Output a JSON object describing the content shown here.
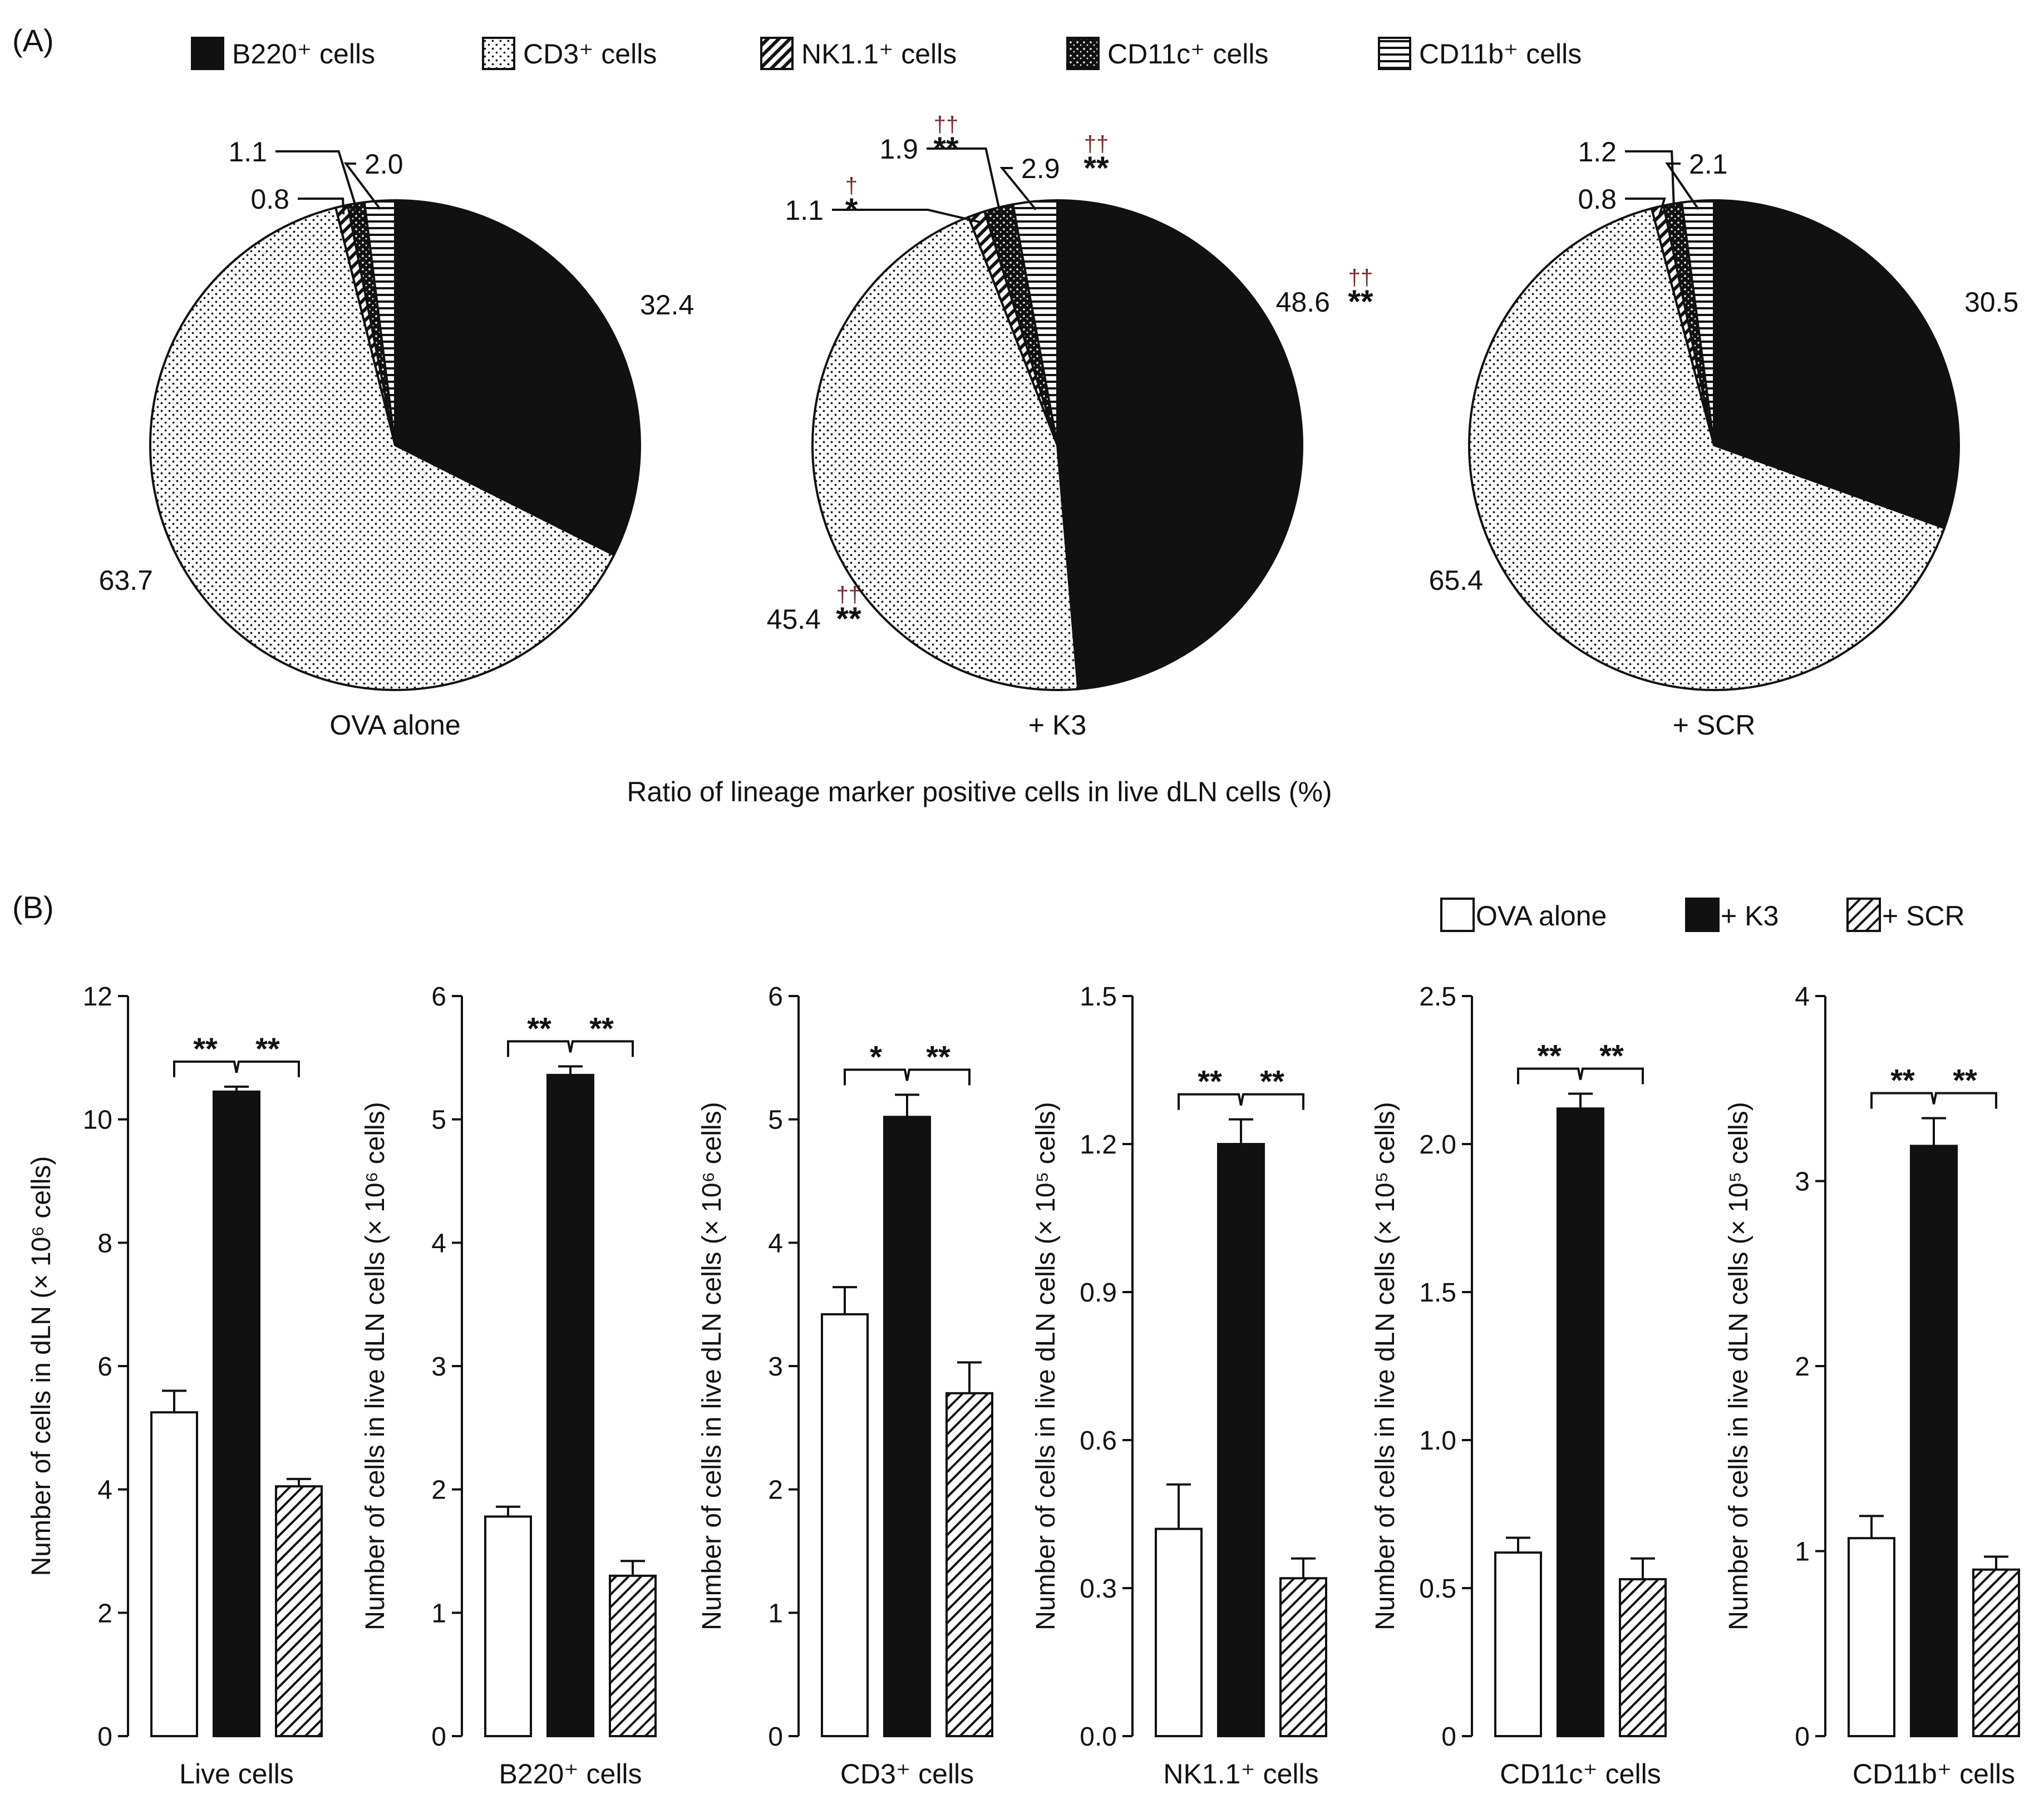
{
  "panel_labels": {
    "a": "(A)",
    "b": "(B)"
  },
  "chart_data": [
    {
      "type": "pie",
      "panel": "(A)",
      "legend": [
        "B220⁺ cells",
        "CD3⁺ cells",
        "NK1.1⁺ cells",
        "CD11c⁺ cells",
        "CD11b⁺ cells"
      ],
      "xlabel": "Ratio of lineage marker positive cells in live dLN cells (%)",
      "pies": [
        {
          "label": "OVA alone",
          "values": [
            32.4,
            63.7,
            0.8,
            1.1,
            2.0
          ],
          "value_labels": [
            "32.4",
            "63.7",
            "0.8",
            "1.1",
            "2.0"
          ],
          "sig": [
            "",
            "",
            "",
            "",
            ""
          ],
          "dagger": [
            "",
            "",
            "",
            "",
            ""
          ]
        },
        {
          "label": "+ K3",
          "values": [
            48.6,
            45.4,
            1.1,
            1.9,
            2.9
          ],
          "value_labels": [
            "48.6",
            "45.4",
            "1.1",
            "1.9",
            "2.9"
          ],
          "sig": [
            "**",
            "**",
            "*",
            "**",
            "**"
          ],
          "dagger": [
            "††",
            "††",
            "†",
            "††",
            "††"
          ]
        },
        {
          "label": "+ SCR",
          "values": [
            30.5,
            65.4,
            0.8,
            1.2,
            2.1
          ],
          "value_labels": [
            "30.5",
            "65.4",
            "0.8",
            "1.2",
            "2.1"
          ],
          "sig": [
            "",
            "",
            "",
            "",
            ""
          ],
          "dagger": [
            "",
            "",
            "",
            "",
            ""
          ]
        }
      ]
    },
    {
      "type": "bar",
      "panel": "(B)",
      "legend": [
        "OVA alone",
        "+ K3",
        "+ SCR"
      ],
      "charts": [
        {
          "xlabel": "Live cells",
          "ylabel": "Number of cells in dLN (× 10⁶ cells)",
          "ylim": [
            0,
            12
          ],
          "yticks": [
            "0",
            "2",
            "4",
            "6",
            "8",
            "10",
            "12"
          ],
          "values": [
            5.25,
            10.45,
            4.05
          ],
          "errors": [
            0.35,
            0.08,
            0.12
          ],
          "sig": [
            "**",
            "**"
          ]
        },
        {
          "xlabel": "B220⁺ cells",
          "ylabel": "Number of cells in live dLN cells (× 10⁶ cells)",
          "ylim": [
            0,
            6
          ],
          "yticks": [
            "0",
            "1",
            "2",
            "3",
            "4",
            "5",
            "6"
          ],
          "values": [
            1.78,
            5.36,
            1.3
          ],
          "errors": [
            0.08,
            0.07,
            0.12
          ],
          "sig": [
            "**",
            "**"
          ]
        },
        {
          "xlabel": "CD3⁺ cells",
          "ylabel": "Number of cells in live dLN cells (× 10⁶ cells)",
          "ylim": [
            0,
            6
          ],
          "yticks": [
            "0",
            "1",
            "2",
            "3",
            "4",
            "5",
            "6"
          ],
          "values": [
            3.42,
            5.02,
            2.78
          ],
          "errors": [
            0.22,
            0.18,
            0.25
          ],
          "sig": [
            "*",
            "**"
          ]
        },
        {
          "xlabel": "NK1.1⁺ cells",
          "ylabel": "Number of cells in live dLN cells (× 10⁵ cells)",
          "ylim": [
            0,
            1.5
          ],
          "yticks": [
            "0.0",
            "0.3",
            "0.6",
            "0.9",
            "1.2",
            "1.5"
          ],
          "values": [
            0.42,
            1.2,
            0.32
          ],
          "errors": [
            0.09,
            0.05,
            0.04
          ],
          "sig": [
            "**",
            "**"
          ]
        },
        {
          "xlabel": "CD11c⁺ cells",
          "ylabel": "Number of cells in live dLN cells (× 10⁵ cells)",
          "ylim": [
            0,
            2.5
          ],
          "yticks": [
            "0",
            "0.5",
            "1.0",
            "1.5",
            "2.0",
            "2.5"
          ],
          "values": [
            0.62,
            2.12,
            0.53
          ],
          "errors": [
            0.05,
            0.05,
            0.07
          ],
          "sig": [
            "**",
            "**"
          ]
        },
        {
          "xlabel": "CD11b⁺ cells",
          "ylabel": "Number of cells in live dLN cells (× 10⁵ cells)",
          "ylim": [
            0,
            4
          ],
          "yticks": [
            "0",
            "1",
            "2",
            "3",
            "4"
          ],
          "values": [
            1.07,
            3.19,
            0.9
          ],
          "errors": [
            0.12,
            0.15,
            0.07
          ],
          "sig": [
            "**",
            "**"
          ]
        }
      ]
    }
  ]
}
